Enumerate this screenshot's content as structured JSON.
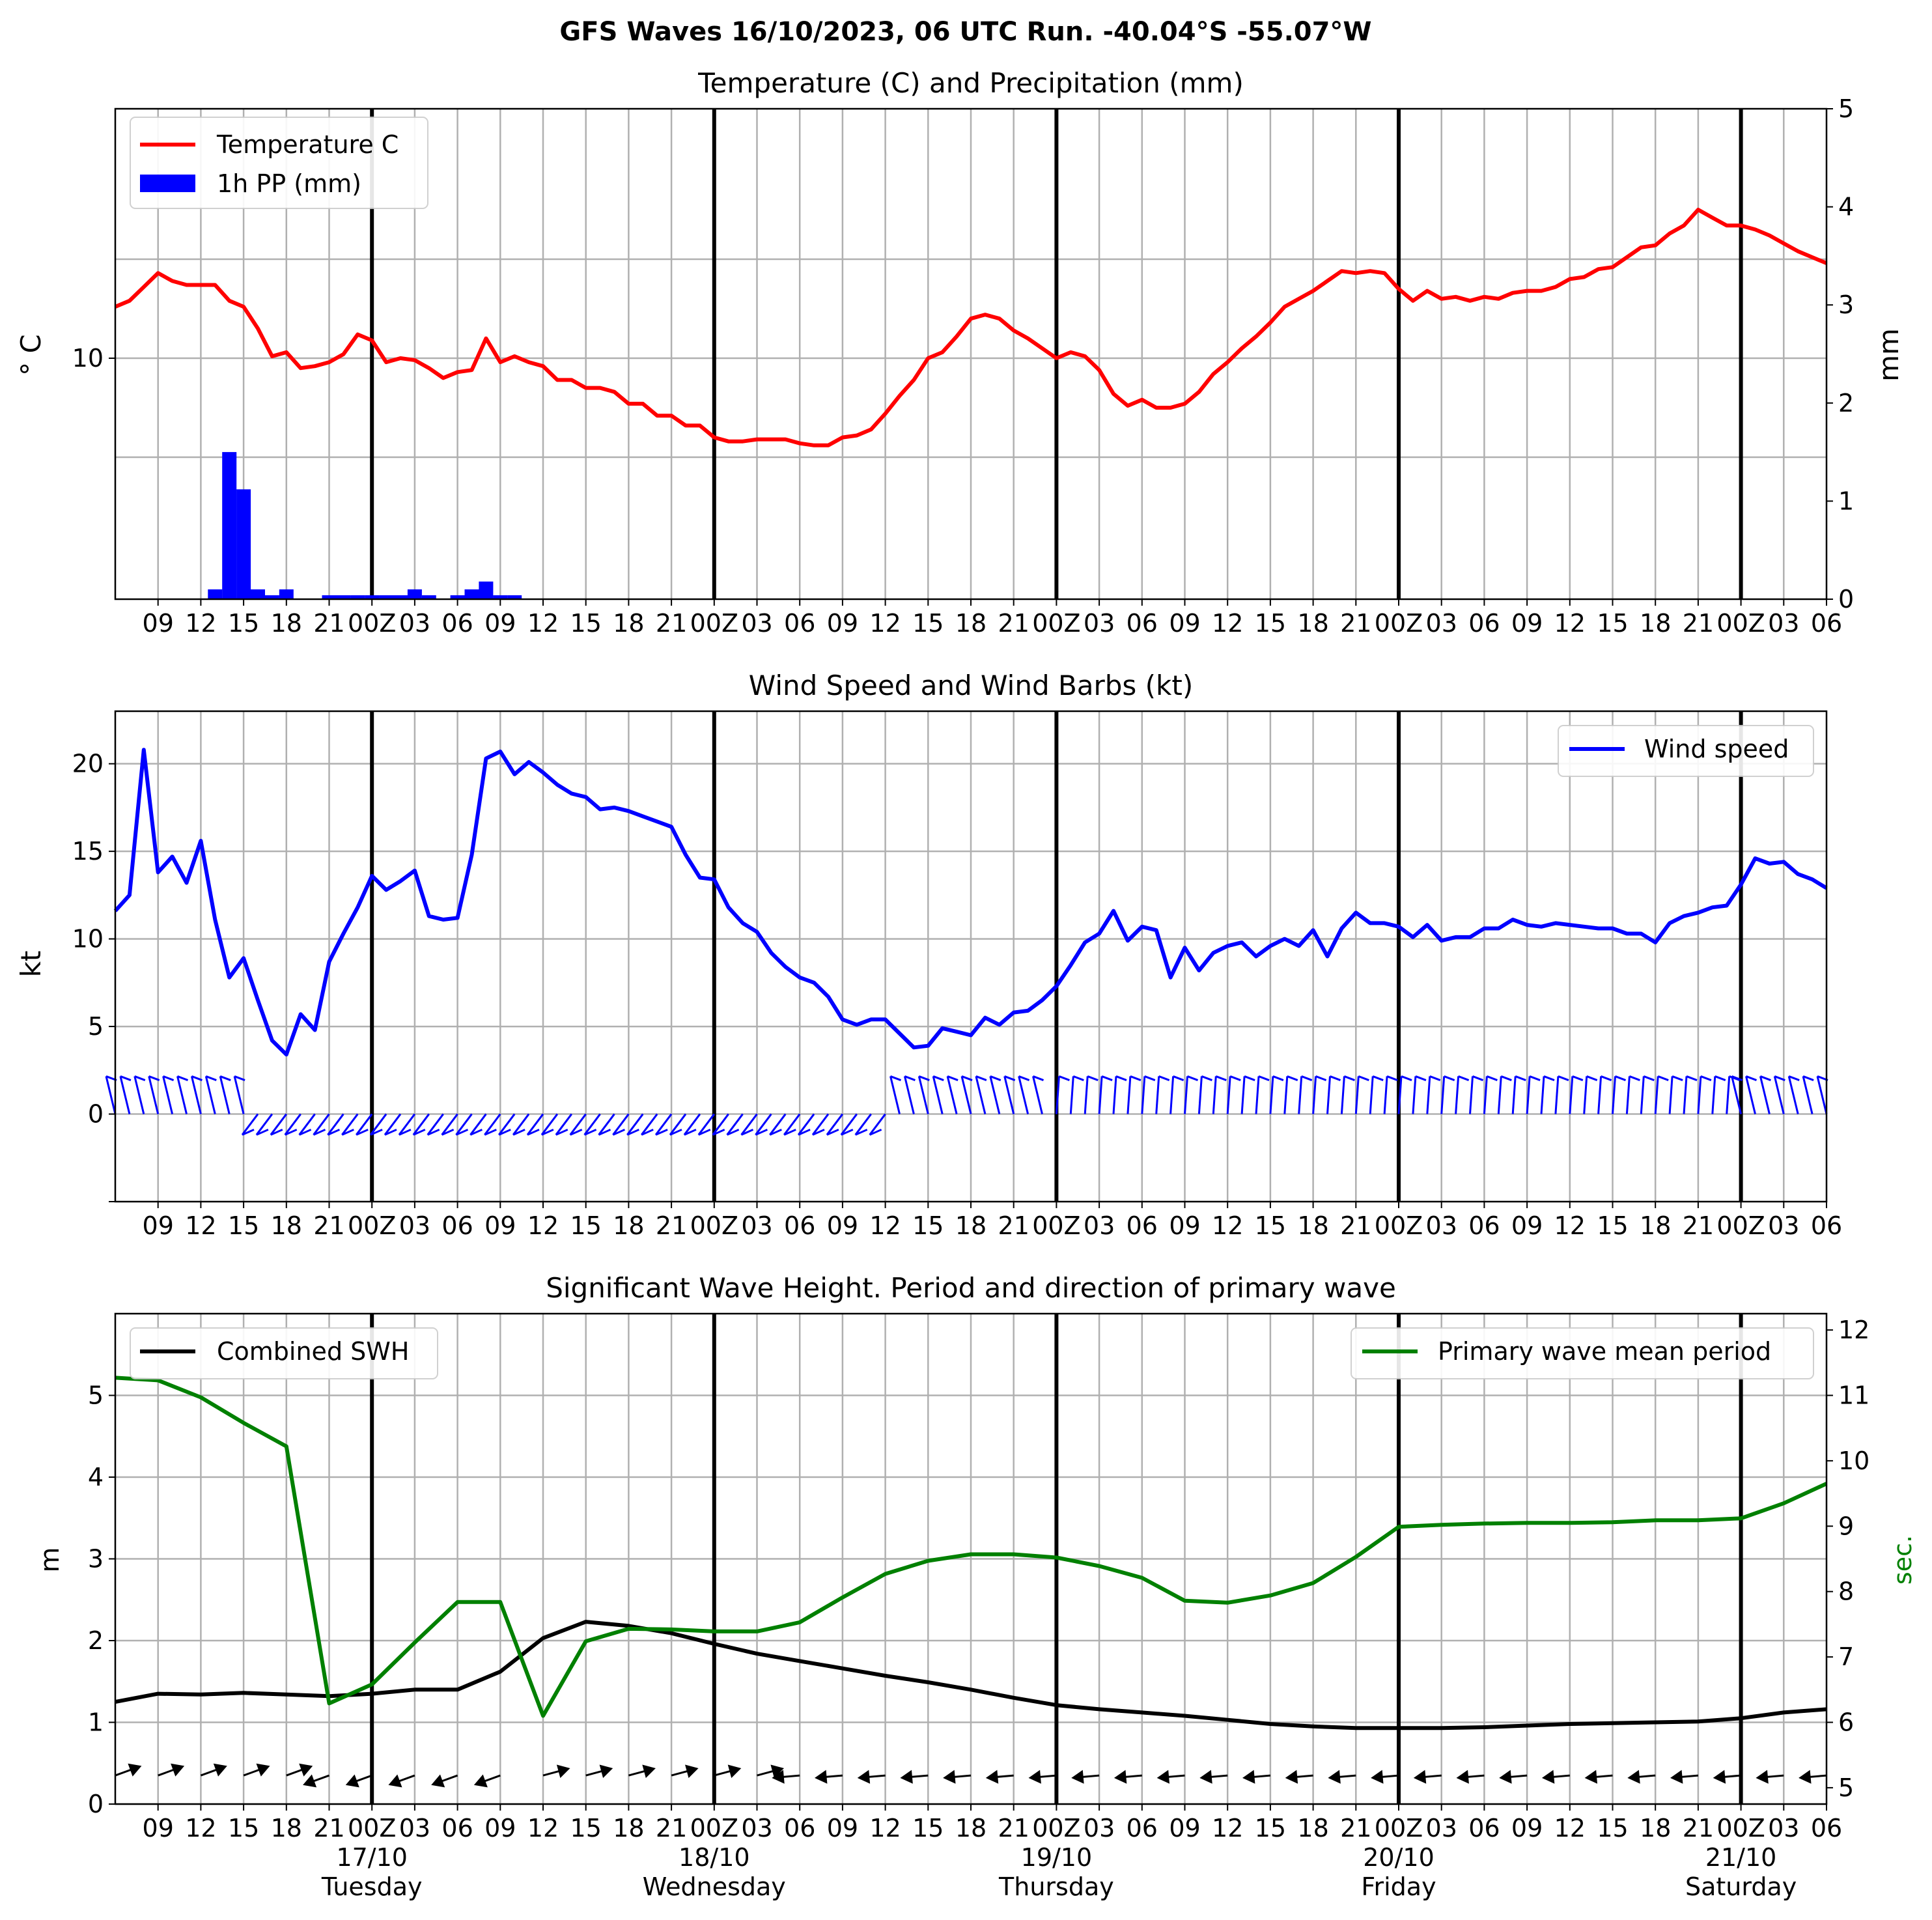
{
  "title": "GFS Waves 16/10/2023, 06 UTC Run. -40.04°S -55.07°W",
  "colors": {
    "temperature": "#ff0000",
    "precip": "#0000ff",
    "wind": "#0000ff",
    "swh": "#000000",
    "period": "#008000",
    "grid": "#b0b0b0"
  },
  "x_tick_labels": [
    "09",
    "12",
    "15",
    "18",
    "21",
    "00Z",
    "03",
    "06",
    "09",
    "12",
    "15",
    "18",
    "21",
    "00Z",
    "03",
    "06",
    "09",
    "12",
    "15",
    "18",
    "21",
    "00Z",
    "03",
    "06",
    "09",
    "12",
    "15",
    "18",
    "21",
    "00Z",
    "03",
    "06",
    "09",
    "12",
    "15",
    "18",
    "21",
    "00Z",
    "03",
    "06"
  ],
  "day_labels": [
    {
      "date": "17/10",
      "day": "Tuesday"
    },
    {
      "date": "18/10",
      "day": "Wednesday"
    },
    {
      "date": "19/10",
      "day": "Thursday"
    },
    {
      "date": "20/10",
      "day": "Friday"
    },
    {
      "date": "21/10",
      "day": "Saturday"
    }
  ],
  "chart_data": [
    {
      "type": "line",
      "title": "Temperature (C) and Precipitation (mm)",
      "ylabel": "° C",
      "ylabel_right": "mm",
      "x_hours_from_run_start": [
        0,
        120
      ],
      "yticks_left": [
        10
      ],
      "yticks_right": [
        0,
        1,
        2,
        3,
        4,
        5
      ],
      "ylim_right": [
        0,
        5
      ],
      "legend": {
        "position": "upper-left",
        "entries": [
          "Temperature C",
          "1h PP (mm)"
        ]
      },
      "grid": true,
      "series": [
        {
          "name": "Temperature C",
          "type": "line",
          "x": [
            0,
            1,
            2,
            3,
            4,
            5,
            6,
            7,
            8,
            9,
            10,
            11,
            12,
            13,
            14,
            15,
            16,
            17,
            18,
            19,
            20,
            21,
            22,
            23,
            24,
            25,
            26,
            27,
            28,
            29,
            30,
            31,
            32,
            33,
            34,
            35,
            36,
            37,
            38,
            39,
            40,
            41,
            42,
            43,
            44,
            45,
            46,
            47,
            48,
            49,
            50,
            51,
            52,
            53,
            54,
            55,
            56,
            57,
            58,
            59,
            60,
            61,
            62,
            63,
            64,
            65,
            66,
            67,
            68,
            69,
            70,
            71,
            72,
            73,
            74,
            75,
            76,
            77,
            78,
            79,
            80,
            81,
            82,
            83,
            84,
            85,
            86,
            87,
            88,
            89,
            90,
            91,
            92,
            93,
            94,
            95,
            96,
            97,
            98,
            99,
            100,
            101,
            102,
            103,
            104,
            105,
            106,
            107,
            108,
            109,
            110,
            111,
            112,
            113,
            114,
            115,
            116,
            117,
            118,
            119,
            120
          ],
          "values": [
            12.6,
            12.9,
            13.6,
            14.3,
            13.9,
            13.7,
            13.7,
            13.7,
            12.9,
            12.6,
            11.5,
            10.1,
            10.3,
            9.5,
            9.6,
            9.8,
            10.2,
            11.2,
            10.9,
            9.8,
            10.0,
            9.9,
            9.5,
            9.0,
            9.3,
            9.4,
            11.0,
            9.8,
            10.1,
            9.8,
            9.6,
            8.9,
            8.9,
            8.5,
            8.5,
            8.3,
            7.7,
            7.7,
            7.1,
            7.1,
            6.6,
            6.6,
            6.0,
            5.8,
            5.8,
            5.9,
            5.9,
            5.9,
            5.7,
            5.6,
            5.6,
            6.0,
            6.1,
            6.4,
            7.2,
            8.1,
            8.9,
            10.0,
            10.3,
            11.1,
            12.0,
            12.2,
            12.0,
            11.4,
            11.0,
            10.5,
            10.0,
            10.3,
            10.1,
            9.4,
            8.2,
            7.6,
            7.9,
            7.5,
            7.5,
            7.7,
            8.3,
            9.2,
            9.8,
            10.5,
            11.1,
            11.8,
            12.6,
            13.0,
            13.4,
            13.9,
            14.4,
            14.3,
            14.4,
            14.3,
            13.5,
            12.9,
            13.4,
            13.0,
            13.1,
            12.9,
            13.1,
            13.0,
            13.3,
            13.4,
            13.4,
            13.6,
            14.0,
            14.1,
            14.5,
            14.6,
            15.1,
            15.6,
            15.7,
            16.3,
            16.7,
            17.5,
            17.1,
            16.7,
            16.7,
            16.5,
            16.2,
            15.8,
            15.4,
            15.1,
            14.8
          ]
        },
        {
          "name": "1h PP (mm)",
          "type": "bar",
          "x": [
            7,
            8,
            9,
            10,
            11,
            12,
            15,
            16,
            17,
            18,
            19,
            20,
            21,
            22,
            23,
            24,
            25,
            26,
            27,
            28,
            29,
            30
          ],
          "values": [
            0.1,
            1.5,
            1.12,
            0.1,
            0.04,
            0.1,
            0.04,
            0.04,
            0.04,
            0.04,
            0.04,
            0.04,
            0.1,
            0.04,
            0.0,
            0.04,
            0.1,
            0.18,
            0.04,
            0.04,
            0.0,
            0.0
          ]
        }
      ]
    },
    {
      "type": "line",
      "title": "Wind Speed and Wind Barbs (kt)",
      "ylabel": "kt",
      "ylim": [
        -5,
        23
      ],
      "yticks": [
        0,
        5,
        10,
        15,
        20
      ],
      "legend": {
        "position": "upper-right",
        "entries": [
          "Wind speed"
        ]
      },
      "grid": true,
      "series": [
        {
          "name": "Wind speed",
          "x": [
            0,
            1,
            2,
            3,
            4,
            5,
            6,
            7,
            8,
            9,
            10,
            11,
            12,
            13,
            14,
            15,
            16,
            17,
            18,
            19,
            20,
            21,
            22,
            23,
            24,
            25,
            26,
            27,
            28,
            29,
            30,
            31,
            32,
            33,
            34,
            35,
            36,
            37,
            38,
            39,
            40,
            41,
            42,
            43,
            44,
            45,
            46,
            47,
            48,
            49,
            50,
            51,
            52,
            53,
            54,
            55,
            56,
            57,
            58,
            59,
            60,
            61,
            62,
            63,
            64,
            65,
            66,
            67,
            68,
            69,
            70,
            71,
            72,
            73,
            74,
            75,
            76,
            77,
            78,
            79,
            80,
            81,
            82,
            83,
            84,
            85,
            86,
            87,
            88,
            89,
            90,
            91,
            92,
            93,
            94,
            95,
            96,
            97,
            98,
            99,
            100,
            101,
            102,
            103,
            104,
            105,
            106,
            107,
            108,
            109,
            110,
            111,
            112,
            113,
            114,
            115,
            116,
            117,
            118,
            119,
            120
          ],
          "values": [
            11.6,
            12.5,
            20.8,
            13.8,
            14.7,
            13.2,
            15.6,
            11.1,
            7.8,
            8.9,
            6.5,
            4.2,
            3.4,
            5.7,
            4.8,
            8.7,
            10.3,
            11.8,
            13.6,
            12.8,
            13.3,
            13.9,
            11.3,
            11.1,
            11.2,
            14.8,
            20.3,
            20.7,
            19.4,
            20.1,
            19.5,
            18.8,
            18.3,
            18.1,
            17.4,
            17.5,
            17.3,
            17.0,
            16.7,
            16.4,
            14.8,
            13.5,
            13.4,
            11.8,
            10.9,
            10.4,
            9.2,
            8.4,
            7.8,
            7.5,
            6.7,
            5.4,
            5.1,
            5.4,
            5.4,
            4.6,
            3.8,
            3.9,
            4.9,
            4.7,
            4.5,
            5.5,
            5.1,
            5.8,
            5.9,
            6.5,
            7.3,
            8.5,
            9.8,
            10.3,
            11.6,
            9.9,
            10.7,
            10.5,
            7.8,
            9.5,
            8.2,
            9.2,
            9.6,
            9.8,
            9.0,
            9.6,
            10.0,
            9.6,
            10.5,
            9.0,
            10.6,
            11.5,
            10.9,
            10.9,
            10.7,
            10.1,
            10.8,
            9.9,
            10.1,
            10.1,
            10.6,
            10.6,
            11.1,
            10.8,
            10.7,
            10.9,
            10.8,
            10.7,
            10.6,
            10.6,
            10.3,
            10.3,
            9.8,
            10.9,
            11.3,
            11.5,
            11.8,
            11.9,
            13.1,
            14.6,
            14.3,
            14.4,
            13.7,
            13.4,
            12.9
          ]
        }
      ]
    },
    {
      "type": "line",
      "title": "Significant Wave Height. Period and direction of primary wave",
      "ylabel": "m",
      "ylabel_right": "sec.",
      "ylim": [
        0,
        6
      ],
      "yticks": [
        0,
        1,
        2,
        3,
        4,
        5
      ],
      "ylim_right": [
        4.75,
        12.25
      ],
      "yticks_right": [
        5,
        6,
        7,
        8,
        9,
        10,
        11,
        12
      ],
      "legend": [
        {
          "position": "upper-left",
          "entries": [
            "Combined SWH"
          ]
        },
        {
          "position": "upper-right",
          "entries": [
            "Primary wave mean period"
          ]
        }
      ],
      "grid": true,
      "series": [
        {
          "name": "Combined SWH",
          "x": [
            0,
            3,
            6,
            9,
            12,
            15,
            18,
            21,
            24,
            27,
            30,
            33,
            36,
            39,
            42,
            45,
            48,
            51,
            54,
            57,
            60,
            63,
            66,
            69,
            72,
            75,
            78,
            81,
            84,
            87,
            90,
            93,
            96,
            99,
            102,
            105,
            108,
            111,
            114,
            117,
            120
          ],
          "values": [
            1.25,
            1.35,
            1.34,
            1.36,
            1.34,
            1.32,
            1.35,
            1.4,
            1.4,
            1.62,
            2.03,
            2.23,
            2.18,
            2.09,
            1.96,
            1.84,
            1.75,
            1.66,
            1.57,
            1.49,
            1.4,
            1.3,
            1.21,
            1.16,
            1.12,
            1.08,
            1.03,
            0.98,
            0.95,
            0.93,
            0.93,
            0.93,
            0.94,
            0.96,
            0.98,
            0.99,
            1.0,
            1.01,
            1.05,
            1.12,
            1.16
          ]
        },
        {
          "name": "Primary wave mean period",
          "x": [
            0,
            3,
            6,
            9,
            12,
            15,
            18,
            21,
            24,
            27,
            30,
            33,
            36,
            39,
            42,
            45,
            48,
            51,
            54,
            57,
            60,
            63,
            66,
            69,
            72,
            75,
            78,
            81,
            84,
            87,
            90,
            93,
            96,
            99,
            102,
            105,
            108,
            111,
            114,
            117,
            120
          ],
          "values": [
            11.27,
            11.23,
            10.97,
            10.58,
            10.22,
            6.29,
            6.58,
            7.22,
            7.84,
            7.84,
            6.1,
            7.24,
            7.43,
            7.42,
            7.39,
            7.39,
            7.53,
            7.91,
            8.27,
            8.47,
            8.57,
            8.57,
            8.52,
            8.39,
            8.21,
            7.86,
            7.83,
            7.94,
            8.13,
            8.53,
            8.99,
            9.02,
            9.04,
            9.05,
            9.05,
            9.06,
            9.09,
            9.09,
            9.12,
            9.35,
            9.65
          ]
        }
      ]
    }
  ]
}
